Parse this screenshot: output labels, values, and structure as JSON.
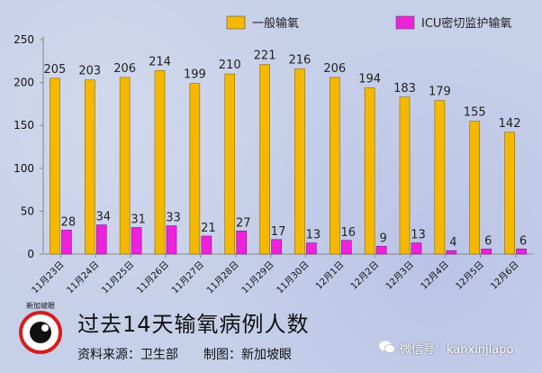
{
  "chart_data": {
    "type": "bar",
    "categories": [
      "11月23日",
      "11月24日",
      "11月25日",
      "11月26日",
      "11月27日",
      "11月28日",
      "11月29日",
      "11月30日",
      "12月1日",
      "12月2日",
      "12月3日",
      "12月4日",
      "12月5日",
      "12月6日"
    ],
    "series": [
      {
        "name": "一般输氧",
        "color": "#f5b800",
        "values": [
          205,
          203,
          206,
          214,
          199,
          210,
          221,
          216,
          206,
          194,
          183,
          179,
          155,
          142
        ]
      },
      {
        "name": "ICU密切监护输氧",
        "color": "#ee22dd",
        "values": [
          28,
          34,
          31,
          33,
          21,
          27,
          17,
          13,
          16,
          9,
          13,
          4,
          6,
          6
        ]
      }
    ],
    "ylim": [
      0,
      250
    ],
    "yticks": [
      0,
      50,
      100,
      150,
      200,
      250
    ],
    "title": "过去14天输氧病例人数",
    "legend": "top-right",
    "grid": false
  },
  "footer": {
    "title": "过去14天输氧病例人数",
    "source": "资料来源：卫生部",
    "credit": "制图：新加坡眼",
    "logo_text": "新加坡眼",
    "wechat": "微信号：kanxinjiapo"
  },
  "icons": {
    "logo": "eye-logo-icon",
    "wechat": "wechat-icon"
  }
}
